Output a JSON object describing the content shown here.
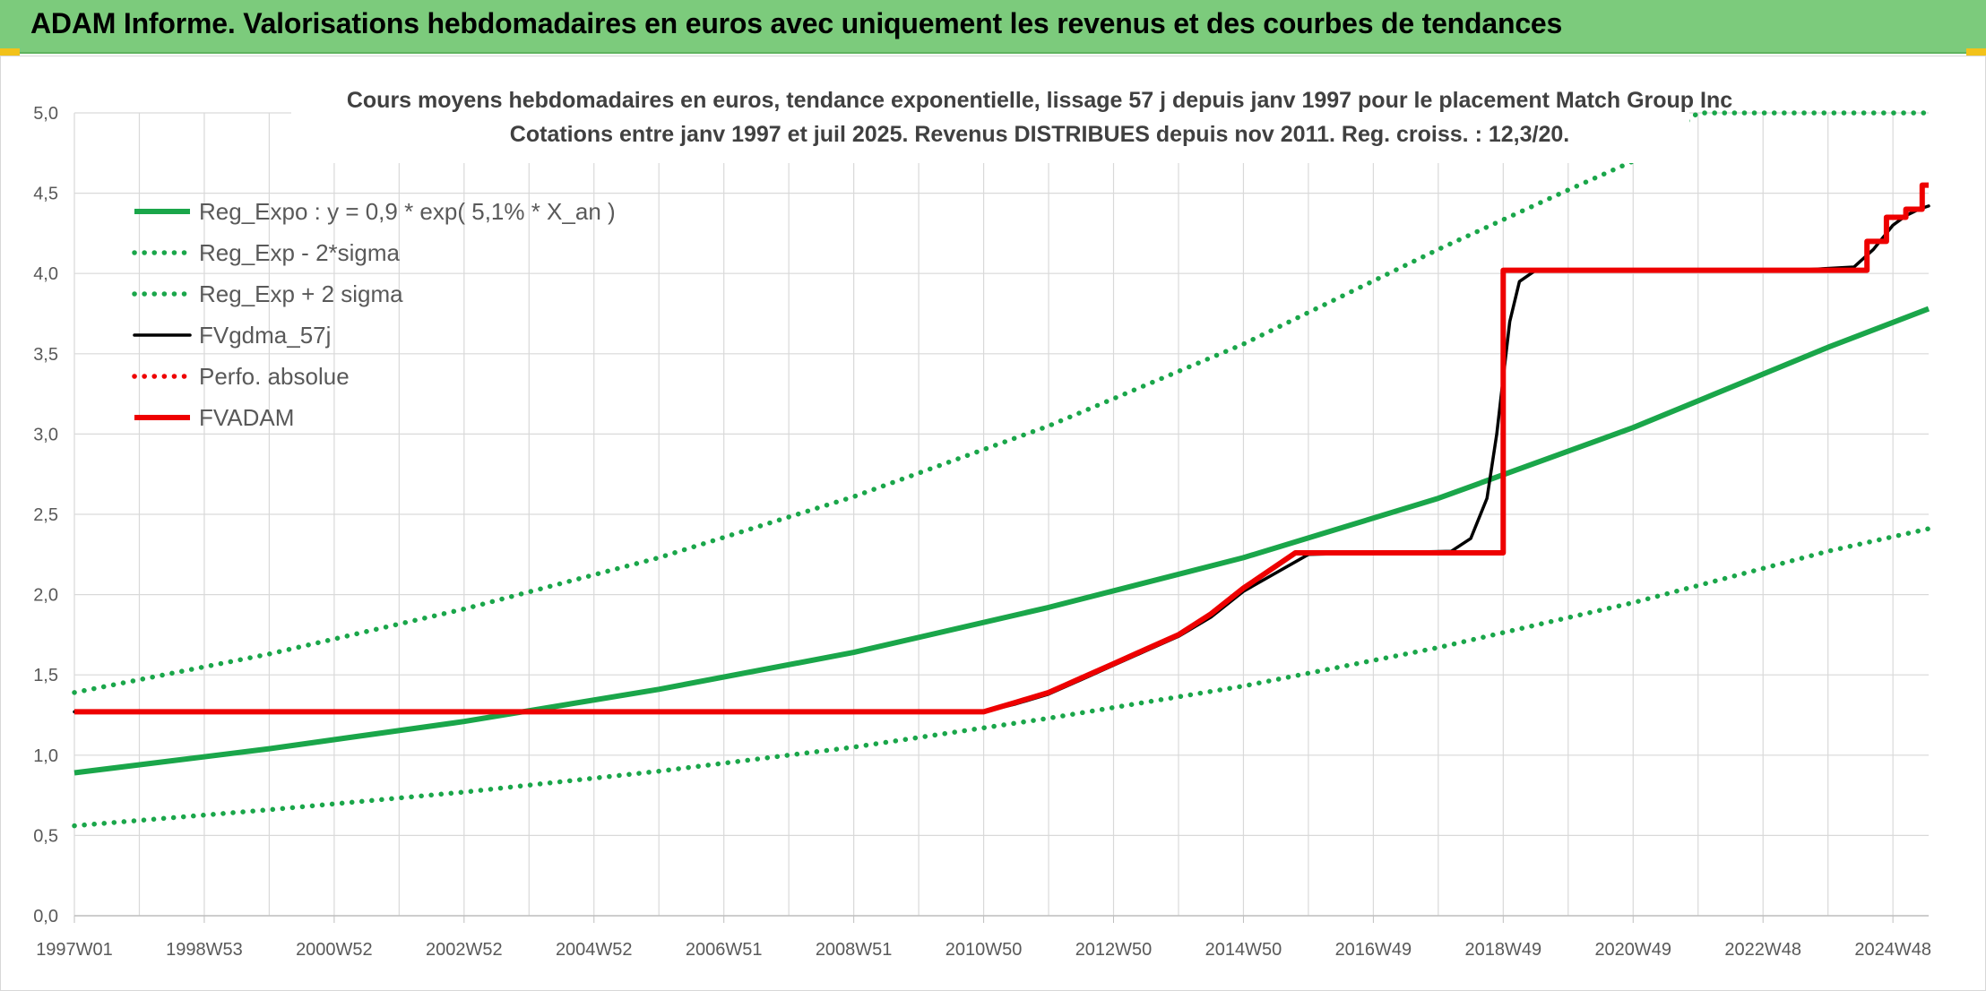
{
  "banner": {
    "title": "ADAM Informe. Valorisations hebdomadaires en euros avec uniquement les revenus et des courbes de tendances"
  },
  "colors": {
    "banner_bg": "#7ccb7c",
    "green": "#1aa64a",
    "red": "#ee0000",
    "black": "#000000",
    "grid": "#d9d9d9"
  },
  "chart_data": {
    "type": "line",
    "title_lines": [
      "Cours moyens hebdomadaires en euros, tendance exponentielle, lissage 57 j depuis janv 1997 pour le placement Match Group Inc",
      "Cotations entre janv 1997 et juil 2025. Revenus DISTRIBUES depuis nov 2011. Reg. croiss. : 12,3/20."
    ],
    "ylim": [
      0,
      5
    ],
    "xlim": [
      1997.0,
      2025.55
    ],
    "y_ticks": [
      "0,0",
      "0,5",
      "1,0",
      "1,5",
      "2,0",
      "2,5",
      "3,0",
      "3,5",
      "4,0",
      "4,5",
      "5,0"
    ],
    "x_tick_labels": [
      "1997W01",
      "1998W53",
      "2000W52",
      "2002W52",
      "2004W52",
      "2006W51",
      "2008W51",
      "2010W50",
      "2012W50",
      "2014W50",
      "2016W49",
      "2018W49",
      "2020W49",
      "2022W48",
      "2024W48"
    ],
    "x_ticks": [
      1997.0,
      1999.0,
      2001.0,
      2003.0,
      2005.0,
      2007.0,
      2009.0,
      2011.0,
      2013.0,
      2015.0,
      2017.0,
      2019.0,
      2021.0,
      2023.0,
      2025.0
    ],
    "grid": true,
    "legend_position": "top-left",
    "series": [
      {
        "name": "Reg_Expo : y = 0,9 * exp( 5,1% *  X_an )",
        "style": "solid-thick",
        "color": "#1aa64a",
        "x": [
          1997.0,
          2000.0,
          2003.0,
          2006.0,
          2009.0,
          2012.0,
          2015.0,
          2018.0,
          2021.0,
          2024.0,
          2025.55
        ],
        "values": [
          0.89,
          1.04,
          1.21,
          1.41,
          1.64,
          1.92,
          2.23,
          2.6,
          3.04,
          3.54,
          3.78
        ]
      },
      {
        "name": "Reg_Exp - 2*sigma",
        "style": "dotted",
        "color": "#1aa64a",
        "x": [
          1997.0,
          2000.0,
          2003.0,
          2006.0,
          2009.0,
          2012.0,
          2015.0,
          2018.0,
          2021.0,
          2024.0,
          2025.55
        ],
        "values": [
          0.56,
          0.66,
          0.77,
          0.9,
          1.05,
          1.23,
          1.43,
          1.67,
          1.95,
          2.27,
          2.41
        ]
      },
      {
        "name": "Reg_Exp + 2 sigma",
        "style": "dotted",
        "color": "#1aa64a",
        "x": [
          1997.0,
          2000.0,
          2003.0,
          2006.0,
          2009.0,
          2012.0,
          2015.0,
          2018.0,
          2020.0,
          2021.0,
          2022.0,
          2025.55
        ],
        "values": [
          1.39,
          1.63,
          1.91,
          2.23,
          2.61,
          3.05,
          3.56,
          4.15,
          4.52,
          4.7,
          5.0,
          5.0
        ]
      },
      {
        "name": "FVgdma_57j",
        "style": "solid",
        "color": "#000000",
        "x": [
          1997.0,
          2011.0,
          2011.5,
          2012.0,
          2012.5,
          2013.0,
          2013.5,
          2014.0,
          2014.5,
          2015.0,
          2016.0,
          2017.0,
          2018.2,
          2018.5,
          2018.75,
          2018.9,
          2019.0,
          2019.1,
          2019.25,
          2019.5,
          2020.0,
          2023.5,
          2024.4,
          2024.7,
          2025.0,
          2025.2,
          2025.4,
          2025.55
        ],
        "values": [
          1.27,
          1.27,
          1.32,
          1.38,
          1.47,
          1.56,
          1.65,
          1.74,
          1.86,
          2.02,
          2.25,
          2.26,
          2.27,
          2.35,
          2.6,
          3.0,
          3.35,
          3.7,
          3.95,
          4.02,
          4.02,
          4.02,
          4.04,
          4.15,
          4.3,
          4.36,
          4.4,
          4.42
        ]
      },
      {
        "name": "Perfo. absolue",
        "style": "dotted",
        "color": "#ee0000",
        "x": [],
        "values": []
      },
      {
        "name": "FVADAM",
        "style": "solid-thick",
        "color": "#ee0000",
        "x": [
          1997.0,
          2011.0,
          2011.5,
          2012.0,
          2012.5,
          2013.0,
          2013.5,
          2014.0,
          2014.5,
          2015.0,
          2015.8,
          2019.0,
          2019.0,
          2024.6,
          2024.6,
          2024.9,
          2024.9,
          2025.2,
          2025.2,
          2025.45,
          2025.45,
          2025.55
        ],
        "values": [
          1.27,
          1.27,
          1.33,
          1.39,
          1.48,
          1.57,
          1.66,
          1.75,
          1.88,
          2.04,
          2.26,
          2.26,
          4.02,
          4.02,
          4.2,
          4.2,
          4.35,
          4.35,
          4.4,
          4.4,
          4.55,
          4.55
        ]
      }
    ]
  }
}
